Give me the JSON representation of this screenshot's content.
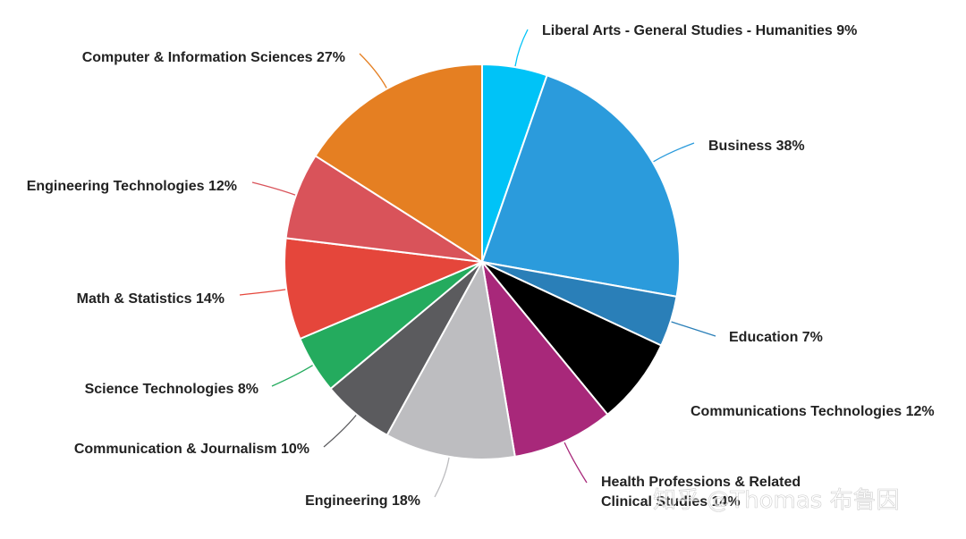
{
  "chart_data": {
    "type": "pie",
    "title": "",
    "slices": [
      {
        "label": "Liberal Arts - General Studies - Humanities 9%",
        "value": 5.4,
        "color": "#00c3f7"
      },
      {
        "label": "Business 38%",
        "value": 22.8,
        "color": "#2b9bdc"
      },
      {
        "label": "Education 7%",
        "value": 4.2,
        "color": "#2a7fb8"
      },
      {
        "label": "Communications Technologies 12%",
        "value": 7.2,
        "color": "#000000"
      },
      {
        "label": "Health Professions & Related Clinical Studies 14%",
        "value": 8.4,
        "color": "#a8287a"
      },
      {
        "label": "Engineering 18%",
        "value": 10.8,
        "color": "#bdbdc0"
      },
      {
        "label": "Communication & Journalism 10%",
        "value": 6.0,
        "color": "#5b5b5e"
      },
      {
        "label": "Science Technologies 8%",
        "value": 4.8,
        "color": "#24ab5e"
      },
      {
        "label": "Math & Statistics 14%",
        "value": 8.4,
        "color": "#e5463b"
      },
      {
        "label": "Engineering Technologies 12%",
        "value": 7.2,
        "color": "#d9535a"
      },
      {
        "label": "Computer & Information Sciences 27%",
        "value": 16.2,
        "color": "#e57f22"
      }
    ]
  },
  "watermark": "知乎 @Thomas 布鲁因"
}
